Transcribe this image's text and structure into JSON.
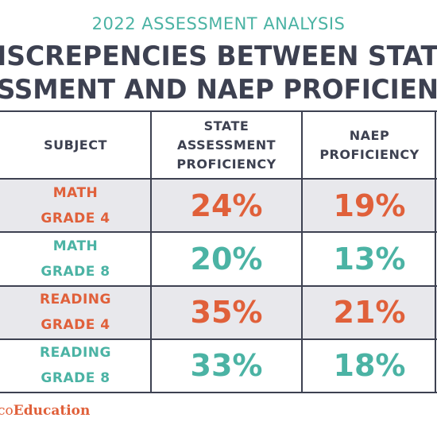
{
  "header": {
    "subtitle": "2022 ASSESSMENT ANALYSIS",
    "title_lines": [
      "ISCREPENCIES BETWEEN STAT",
      "SSMENT AND NAEP PROFICIEN"
    ]
  },
  "table": {
    "columns": [
      [
        "SUBJECT"
      ],
      [
        "STATE",
        "ASSESSMENT",
        "PROFICIENCY"
      ],
      [
        "NAEP",
        "PROFICIENCY"
      ]
    ],
    "rows": [
      {
        "subject": [
          "MATH",
          "GRADE 4"
        ],
        "state": "24%",
        "naep": "19%",
        "color": "#e0603a",
        "background": "#e8e8ec"
      },
      {
        "subject": [
          "MATH",
          "GRADE 8"
        ],
        "state": "20%",
        "naep": "13%",
        "color": "#4bb3a4",
        "background": "#ffffff"
      },
      {
        "subject": [
          "READING",
          "GRADE 4"
        ],
        "state": "35%",
        "naep": "21%",
        "color": "#e0603a",
        "background": "#e8e8ec"
      },
      {
        "subject": [
          "READING",
          "GRADE 8"
        ],
        "state": "33%",
        "naep": "18%",
        "color": "#4bb3a4",
        "background": "#ffffff"
      }
    ]
  },
  "footer": {
    "prefix": "co",
    "brand": "Education"
  }
}
